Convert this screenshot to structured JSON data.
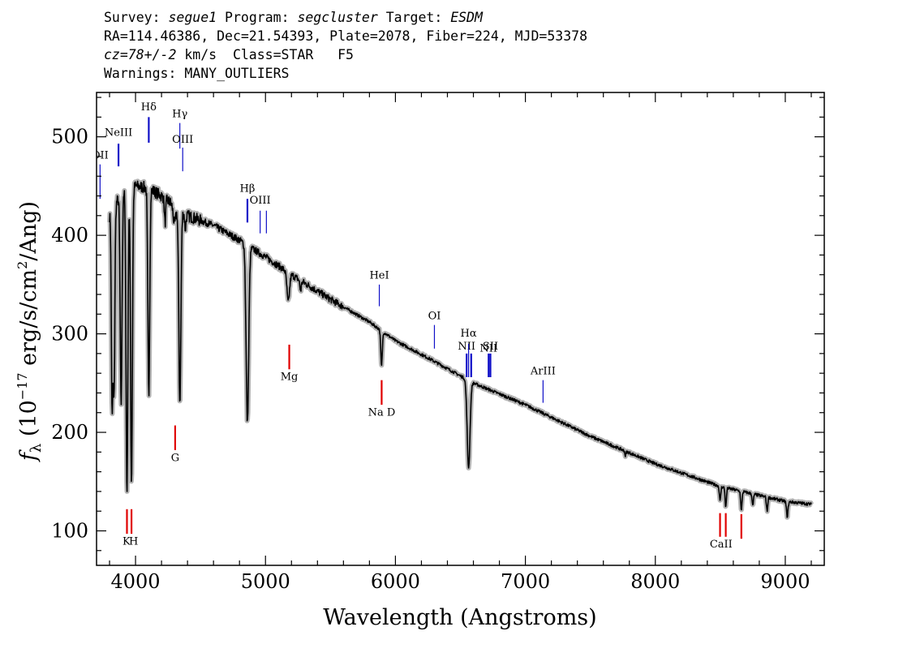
{
  "header": {
    "line1": {
      "survey_label": "Survey: ",
      "survey": "segue1",
      "program_label": " Program: ",
      "program": "segcluster",
      "target_label": " Target: ",
      "target": "ESDM"
    },
    "line2": "RA=114.46386, Dec=21.54393, Plate=2078, Fiber=224, MJD=53378",
    "line3": {
      "cz": "cz=78+/-2",
      "rest": " km/s  Class=STAR   F5"
    },
    "line4": "Warnings: MANY_OUTLIERS"
  },
  "chart_data": {
    "type": "line",
    "xlabel": "Wavelength (Angstroms)",
    "ylabel": "f_λ (10^-17 erg/s/cm^2/Ang)",
    "ylabel_parts": {
      "f": "f",
      "sub": "λ",
      "a": " (10",
      "sup1": "−17",
      "b": " erg/s/cm",
      "sup2": "2",
      "c": "/Ang)"
    },
    "xlim": [
      3700,
      9300
    ],
    "ylim": [
      65,
      545
    ],
    "x_ticks": [
      4000,
      5000,
      6000,
      7000,
      8000,
      9000
    ],
    "y_ticks": [
      100,
      200,
      300,
      400,
      500
    ],
    "colors": {
      "spectrum": "#000000",
      "error": "#b3b3b3",
      "emission": "#1010c8",
      "absorption": "#e00000"
    },
    "continuum": [
      [
        3800,
        420
      ],
      [
        3900,
        445
      ],
      [
        4000,
        450
      ],
      [
        4100,
        448
      ],
      [
        4200,
        440
      ],
      [
        4300,
        430
      ],
      [
        4400,
        420
      ],
      [
        4600,
        410
      ],
      [
        4800,
        395
      ],
      [
        5000,
        378
      ],
      [
        5200,
        360
      ],
      [
        5500,
        335
      ],
      [
        5800,
        312
      ],
      [
        6000,
        293
      ],
      [
        6300,
        272
      ],
      [
        6600,
        250
      ],
      [
        7000,
        228
      ],
      [
        7500,
        196
      ],
      [
        8000,
        168
      ],
      [
        8500,
        145
      ],
      [
        9000,
        130
      ],
      [
        9200,
        127
      ]
    ],
    "absorption_features": [
      {
        "center": 3820,
        "depth": 200,
        "width": 6
      },
      {
        "center": 3835,
        "depth": 185,
        "width": 6
      },
      {
        "center": 3889,
        "depth": 215,
        "width": 7
      },
      {
        "center": 3934,
        "depth": 310,
        "width": 7
      },
      {
        "center": 3969,
        "depth": 300,
        "width": 7
      },
      {
        "center": 4102,
        "depth": 210,
        "width": 7
      },
      {
        "center": 4227,
        "depth": 25,
        "width": 5
      },
      {
        "center": 4300,
        "depth": 18,
        "width": 10
      },
      {
        "center": 4341,
        "depth": 195,
        "width": 8
      },
      {
        "center": 4383,
        "depth": 15,
        "width": 5
      },
      {
        "center": 4861,
        "depth": 180,
        "width": 10
      },
      {
        "center": 5175,
        "depth": 30,
        "width": 10
      },
      {
        "center": 5270,
        "depth": 10,
        "width": 6
      },
      {
        "center": 5893,
        "depth": 36,
        "width": 6
      },
      {
        "center": 6563,
        "depth": 88,
        "width": 11
      },
      {
        "center": 7770,
        "depth": 5,
        "width": 4
      },
      {
        "center": 8498,
        "depth": 15,
        "width": 5
      },
      {
        "center": 8542,
        "depth": 20,
        "width": 5
      },
      {
        "center": 8662,
        "depth": 20,
        "width": 5
      },
      {
        "center": 8750,
        "depth": 12,
        "width": 5
      },
      {
        "center": 8860,
        "depth": 14,
        "width": 5
      },
      {
        "center": 9015,
        "depth": 15,
        "width": 6
      }
    ],
    "emission_lines": [
      {
        "label": "OII",
        "x": 3727,
        "y0": 437,
        "y1": 472,
        "label_y": 478,
        "thick": false
      },
      {
        "label": "NeIII",
        "x": 3869,
        "y0": 470,
        "y1": 493,
        "label_y": 501,
        "thick": true
      },
      {
        "label": "Hδ",
        "x": 4102,
        "y0": 494,
        "y1": 520,
        "label_y": 527,
        "thick": true
      },
      {
        "label": "Hγ",
        "x": 4341,
        "y0": 488,
        "y1": 514,
        "label_y": 520,
        "thick": false
      },
      {
        "label": "OIII",
        "x": 4363,
        "y0": 465,
        "y1": 489,
        "label_y": 494,
        "thick": false
      },
      {
        "label": "Hβ",
        "x": 4861,
        "y0": 413,
        "y1": 437,
        "label_y": 444,
        "thick": true
      },
      {
        "label": "OIII",
        "x": 4959,
        "y0": 402,
        "y1": 425,
        "label_y": 432,
        "thick": false
      },
      {
        "label": "",
        "x": 5007,
        "y0": 402,
        "y1": 425,
        "label_y": 0,
        "thick": false
      },
      {
        "label": "HeI",
        "x": 5876,
        "y0": 328,
        "y1": 350,
        "label_y": 356,
        "thick": false
      },
      {
        "label": "OI",
        "x": 6300,
        "y0": 285,
        "y1": 309,
        "label_y": 315,
        "thick": false
      },
      {
        "label": "NII",
        "x": 6548,
        "y0": 256,
        "y1": 280,
        "label_y": 284,
        "thick": true
      },
      {
        "label": "Hα",
        "x": 6563,
        "y0": 256,
        "y1": 290,
        "label_y": 297,
        "thick": false
      },
      {
        "label": "",
        "x": 6583,
        "y0": 256,
        "y1": 280,
        "label_y": 0,
        "thick": true
      },
      {
        "label": "NII",
        "x": 6717,
        "y0": 256,
        "y1": 280,
        "label_y": 282,
        "thick": true
      },
      {
        "label": "SII",
        "x": 6731,
        "y0": 256,
        "y1": 280,
        "label_y": 284,
        "thick": true
      },
      {
        "label": "ArIII",
        "x": 7136,
        "y0": 230,
        "y1": 253,
        "label_y": 259,
        "thick": false
      }
    ],
    "absorption_lines": [
      {
        "label": "",
        "x": 3934,
        "y0": 97,
        "y1": 122,
        "label_y": 0
      },
      {
        "label": "K",
        "x": 3934,
        "y0": 0,
        "y1": 0,
        "label_y": 86,
        "label_x": 3930
      },
      {
        "label": "H",
        "x": 3969,
        "y0": 97,
        "y1": 122,
        "label_y": 86,
        "label_x": 3985
      },
      {
        "label": "G",
        "x": 4305,
        "y0": 182,
        "y1": 207,
        "label_y": 171,
        "label_x": 4305
      },
      {
        "label": "Mg",
        "x": 5183,
        "y0": 264,
        "y1": 289,
        "label_y": 253,
        "label_x": 5183
      },
      {
        "label": "Na  D",
        "x": 5894,
        "y0": 228,
        "y1": 253,
        "label_y": 217,
        "label_x": 5894
      },
      {
        "label": "",
        "x": 8498,
        "y0": 94,
        "y1": 118,
        "label_y": 0
      },
      {
        "label": "CaII",
        "x": 8542,
        "y0": 94,
        "y1": 118,
        "label_y": 83,
        "label_x": 8506
      },
      {
        "label": "",
        "x": 8662,
        "y0": 92,
        "y1": 117,
        "label_y": 0
      }
    ]
  }
}
